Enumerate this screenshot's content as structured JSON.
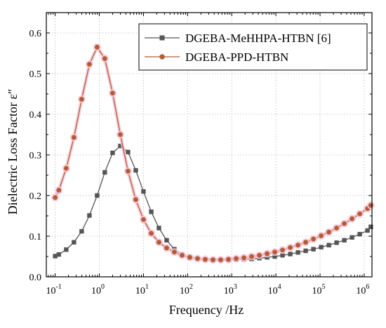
{
  "chart_data": {
    "type": "line",
    "xlabel": "Frequency /Hz",
    "ylabel": "Dielectric Loss Factor ε″",
    "x_scale": "log",
    "xlim": [
      0.063,
      1500000.0
    ],
    "ylim": [
      0,
      0.65
    ],
    "x_tick_labels": [
      {
        "base": "10",
        "exp": "-1"
      },
      {
        "base": "10",
        "exp": "0"
      },
      {
        "base": "10",
        "exp": "1"
      },
      {
        "base": "10",
        "exp": "2"
      },
      {
        "base": "10",
        "exp": "3"
      },
      {
        "base": "10",
        "exp": "4"
      },
      {
        "base": "10",
        "exp": "5"
      },
      {
        "base": "10",
        "exp": "6"
      }
    ],
    "y_ticks": [
      "0.0",
      "0.1",
      "0.2",
      "0.3",
      "0.4",
      "0.5",
      "0.6"
    ],
    "grid": true,
    "legend_position": "top-right",
    "series": [
      {
        "name": "DGEBA-MeHHPA-HTBN [6]",
        "color": "#555555",
        "marker": "square",
        "x": [
          0.1,
          0.121,
          0.178,
          0.266,
          0.398,
          0.596,
          0.891,
          1.33,
          2.0,
          2.99,
          4.47,
          6.69,
          10.0,
          15.0,
          22.4,
          33.5,
          50.1,
          75.0,
          112,
          168,
          251,
          376,
          562,
          841,
          1259,
          1884,
          2818,
          4217,
          6310,
          9441,
          14125,
          21135,
          31623,
          47315,
          70795,
          105925,
          158489,
          237137,
          354813,
          530884,
          794328,
          1188502,
          1412538
        ],
        "y": [
          0.051,
          0.055,
          0.067,
          0.085,
          0.112,
          0.151,
          0.2,
          0.257,
          0.305,
          0.322,
          0.307,
          0.262,
          0.21,
          0.16,
          0.12,
          0.09,
          0.068,
          0.055,
          0.047,
          0.044,
          0.042,
          0.041,
          0.041,
          0.041,
          0.042,
          0.043,
          0.044,
          0.046,
          0.048,
          0.05,
          0.053,
          0.056,
          0.06,
          0.064,
          0.068,
          0.073,
          0.078,
          0.084,
          0.09,
          0.097,
          0.105,
          0.114,
          0.123
        ]
      },
      {
        "name": "DGEBA-PPD-HTBN",
        "color": "#b45b36",
        "marker": "circle",
        "x": [
          0.1,
          0.121,
          0.178,
          0.266,
          0.398,
          0.596,
          0.891,
          1.33,
          2.0,
          2.99,
          4.47,
          6.69,
          10.0,
          15.0,
          22.4,
          33.5,
          50.1,
          75.0,
          112,
          168,
          251,
          376,
          562,
          841,
          1259,
          1884,
          2818,
          4217,
          6310,
          9441,
          14125,
          21135,
          31623,
          47315,
          70795,
          105925,
          158489,
          237137,
          354813,
          530884,
          794328,
          1188502,
          1412538
        ],
        "y": [
          0.195,
          0.213,
          0.267,
          0.343,
          0.437,
          0.523,
          0.565,
          0.537,
          0.452,
          0.35,
          0.26,
          0.19,
          0.141,
          0.107,
          0.085,
          0.071,
          0.061,
          0.053,
          0.048,
          0.045,
          0.043,
          0.042,
          0.042,
          0.043,
          0.045,
          0.047,
          0.05,
          0.053,
          0.057,
          0.061,
          0.066,
          0.072,
          0.078,
          0.085,
          0.093,
          0.101,
          0.11,
          0.12,
          0.131,
          0.143,
          0.155,
          0.168,
          0.176
        ]
      }
    ]
  }
}
